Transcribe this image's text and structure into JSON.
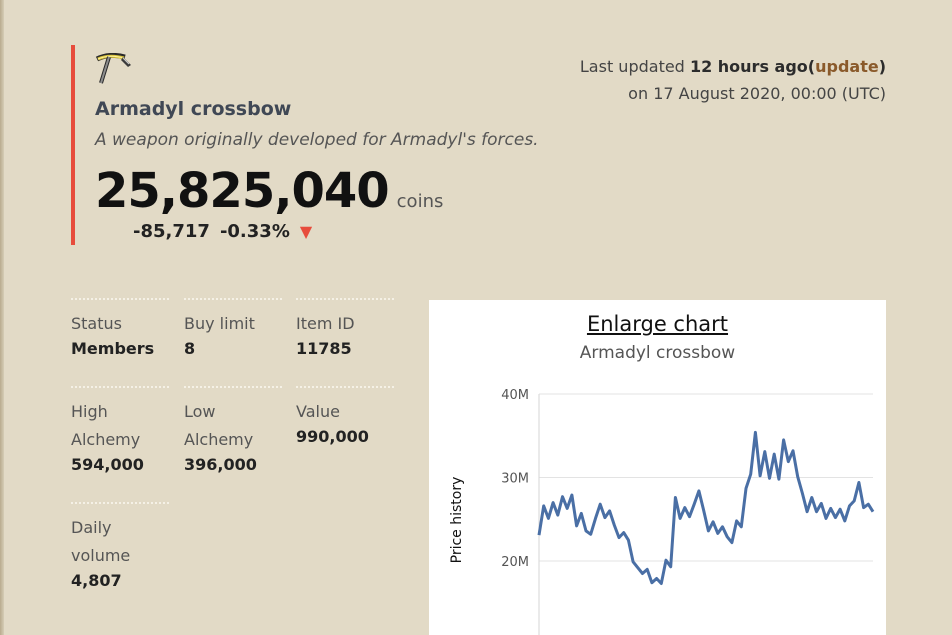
{
  "item": {
    "name": "Armadyl crossbow",
    "description": "A weapon originally developed for Armadyl's forces.",
    "icon": "crossbow-icon",
    "price": "25,825,040",
    "price_unit": "coins",
    "change_amount": "-85,717",
    "change_percent": "-0.33%",
    "change_direction": "down",
    "accent_color": "#e74c3c"
  },
  "updated": {
    "prefix": "Last updated",
    "relative": "12 hours ago",
    "open_paren": "(",
    "link_label": "update",
    "close_paren": ")",
    "absolute": "on 17 August 2020, 00:00 (UTC)"
  },
  "info": {
    "status": {
      "label": "Status",
      "value": "Members"
    },
    "buy_limit": {
      "label": "Buy limit",
      "value": "8"
    },
    "item_id": {
      "label": "Item ID",
      "value": "11785"
    },
    "high_alch": {
      "label": "High Alchemy",
      "value": "594,000"
    },
    "low_alch": {
      "label": "Low Alchemy",
      "value": "396,000"
    },
    "value": {
      "label": "Value",
      "value": "990,000"
    },
    "daily_volume": {
      "label": "Daily volume",
      "value": "4,807"
    }
  },
  "chart": {
    "enlarge_label": "Enlarge chart"
  },
  "chart_data": {
    "type": "line",
    "title": "Armadyl crossbow",
    "ylabel": "Price history",
    "xlabel": "",
    "ylim": [
      15,
      40
    ],
    "yticks": [
      "40M",
      "30M",
      "20M"
    ],
    "ytick_values": [
      40,
      30,
      20
    ],
    "grid": true,
    "line_color": "#4a6fa5",
    "series": [
      {
        "values": [
          23.1,
          26.6,
          25.1,
          27.0,
          25.5,
          27.7,
          26.3,
          27.9,
          24.2,
          25.7,
          23.6,
          23.2,
          25.1,
          26.8,
          25.2,
          26.0,
          24.3,
          22.8,
          23.4,
          22.5,
          19.9,
          19.2,
          18.5,
          19.0,
          17.4,
          17.9,
          17.3,
          20.1,
          19.3,
          27.6,
          25.1,
          26.4,
          25.3,
          26.8,
          28.4,
          26.1,
          23.6,
          24.7,
          23.3,
          24.1,
          22.9,
          22.2,
          24.8,
          24.1,
          28.7,
          30.4,
          35.4,
          30.2,
          33.1,
          29.9,
          32.8,
          29.8,
          34.5,
          31.9,
          33.2,
          30.1,
          28.1,
          25.9,
          27.6,
          25.9,
          26.9,
          25.1,
          26.3,
          25.2,
          26.2,
          24.8,
          26.6,
          27.2,
          29.4,
          26.4,
          26.8,
          25.9
        ]
      }
    ]
  }
}
